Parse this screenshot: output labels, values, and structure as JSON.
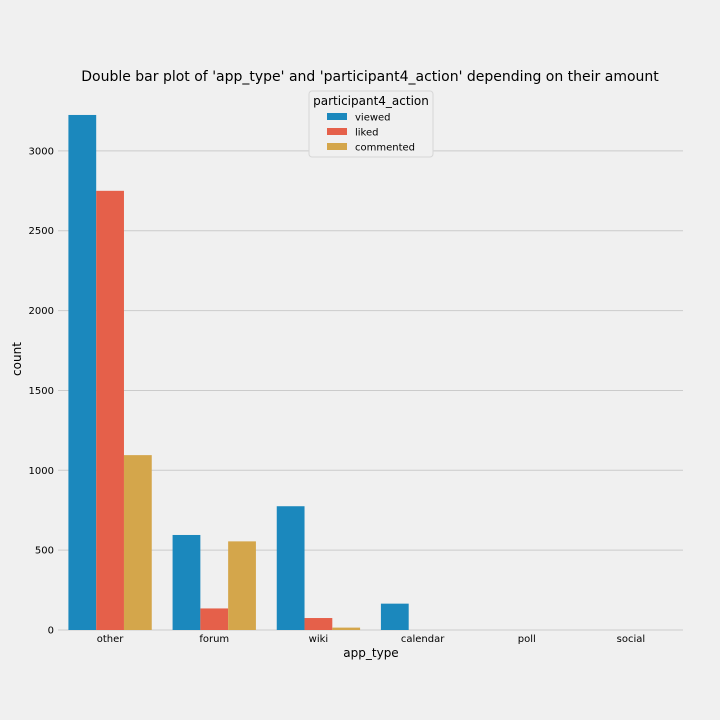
{
  "chart_data": {
    "type": "bar",
    "title": "Double bar plot of 'app_type' and 'participant4_action' depending on their amount",
    "xlabel": "app_type",
    "ylabel": "count",
    "categories": [
      "other",
      "forum",
      "wiki",
      "calendar",
      "poll",
      "social"
    ],
    "ylim": [
      0,
      3350
    ],
    "yticks": [
      0,
      500,
      1000,
      1500,
      2000,
      2500,
      3000
    ],
    "grid": true,
    "legend": {
      "title": "participant4_action",
      "placement": "top-center"
    },
    "series": [
      {
        "name": "viewed",
        "color": "#1b88bd",
        "values": [
          3225,
          595,
          775,
          165,
          0,
          0
        ]
      },
      {
        "name": "liked",
        "color": "#e5604a",
        "values": [
          2750,
          135,
          75,
          0,
          0,
          0
        ]
      },
      {
        "name": "commented",
        "color": "#d4a64b",
        "values": [
          1095,
          555,
          15,
          0,
          0,
          0
        ]
      }
    ]
  }
}
